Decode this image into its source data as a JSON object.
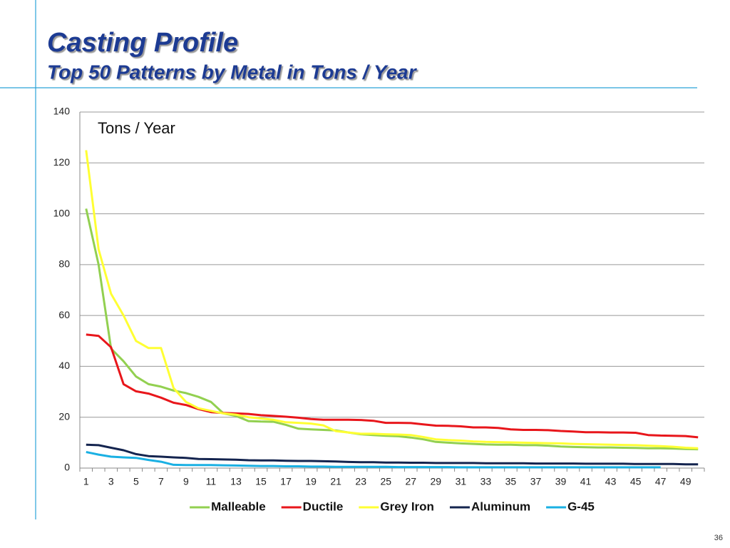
{
  "title": "Casting Profile",
  "subtitle": "Top 50 Patterns by Metal in Tons / Year",
  "page_number": "36",
  "chart_data": {
    "type": "line",
    "annotation": "Tons / Year",
    "categories": [
      "1",
      null,
      "3",
      null,
      "5",
      null,
      "7",
      null,
      "9",
      null,
      "11",
      null,
      "13",
      null,
      "15",
      null,
      "17",
      null,
      "19",
      null,
      "21",
      null,
      "23",
      null,
      "25",
      null,
      "27",
      null,
      "29",
      null,
      "31",
      null,
      "33",
      null,
      "35",
      null,
      "37",
      null,
      "39",
      null,
      "41",
      null,
      "43",
      null,
      "45",
      null,
      "47",
      null,
      "49",
      null
    ],
    "ylim": [
      0,
      140
    ],
    "yticks": [
      0,
      20,
      40,
      60,
      80,
      100,
      120,
      140
    ],
    "grid": true,
    "legend": "bottom",
    "series": [
      {
        "name": "Malleable",
        "color": "#92d050",
        "values": [
          102,
          80,
          47,
          42,
          36,
          33,
          32,
          30.5,
          29.5,
          28,
          26,
          21.5,
          20.5,
          18.5,
          18.3,
          18.2,
          17,
          15.5,
          15.2,
          15,
          14.8,
          14,
          13.3,
          13,
          12.7,
          12.5,
          12,
          11.3,
          10.3,
          10,
          9.7,
          9.5,
          9.3,
          9.2,
          9.2,
          9,
          9,
          8.8,
          8.5,
          8.3,
          8.2,
          8.1,
          8.1,
          8,
          7.9,
          7.8,
          7.8,
          7.7,
          7.5,
          7.4
        ]
      },
      {
        "name": "Ductile",
        "color": "#e8161b",
        "values": [
          52.5,
          52,
          47.5,
          33,
          30.2,
          29.3,
          27.7,
          25.7,
          24.8,
          23.2,
          22,
          21.7,
          21.5,
          21.3,
          20.8,
          20.5,
          20.2,
          19.8,
          19.3,
          19,
          19,
          19,
          18.9,
          18.6,
          17.8,
          17.8,
          17.7,
          17.2,
          16.7,
          16.6,
          16.4,
          16,
          16,
          15.8,
          15.2,
          15,
          15,
          14.9,
          14.6,
          14.4,
          14.1,
          14.1,
          14,
          14,
          13.9,
          13,
          12.8,
          12.7,
          12.6,
          12.1
        ]
      },
      {
        "name": "Grey Iron",
        "color": "#ffff33",
        "values": [
          125,
          86,
          68.5,
          60,
          50,
          47.2,
          47.2,
          31.5,
          26,
          23.5,
          22.5,
          21.5,
          21,
          20,
          19.5,
          19,
          18,
          17.8,
          17.5,
          16.8,
          14.5,
          14,
          13.5,
          13.5,
          13.3,
          13.2,
          13,
          12.2,
          11.3,
          11,
          10.8,
          10.5,
          10.3,
          10.2,
          10.1,
          10,
          9.9,
          9.8,
          9.7,
          9.5,
          9.4,
          9.3,
          9.2,
          9.1,
          9,
          8.8,
          8.6,
          8.4,
          8,
          7.8
        ]
      },
      {
        "name": "Aluminum",
        "color": "#14244f",
        "values": [
          9.2,
          9,
          8,
          7,
          5.5,
          4.7,
          4.5,
          4.2,
          4,
          3.6,
          3.5,
          3.4,
          3.3,
          3.1,
          3,
          3,
          2.9,
          2.8,
          2.8,
          2.7,
          2.6,
          2.4,
          2.3,
          2.3,
          2.2,
          2.2,
          2.1,
          2.1,
          2,
          2,
          2,
          2,
          1.9,
          1.9,
          1.9,
          1.9,
          1.8,
          1.8,
          1.8,
          1.8,
          1.7,
          1.7,
          1.7,
          1.7,
          1.6,
          1.6,
          1.6,
          1.6,
          1.5,
          1.5
        ]
      },
      {
        "name": "G-45",
        "color": "#1ab0e3",
        "values": [
          6.3,
          5.3,
          4.5,
          4.2,
          4,
          3.2,
          2.5,
          1.3,
          1.2,
          1.2,
          1.2,
          1.1,
          1,
          0.9,
          0.8,
          0.8,
          0.7,
          0.7,
          0.6,
          0.6,
          0.5,
          0.5,
          0.5,
          0.5,
          0.5,
          0.4,
          0.4,
          0.4,
          0.4,
          0.4,
          0.3,
          0.3,
          0.3,
          0.3,
          0.3,
          0.3,
          0.3,
          0.3,
          0.3,
          0.3,
          0.3,
          0.3,
          0.3,
          0.3,
          0.3,
          0.3,
          0.3,
          null,
          null,
          null
        ]
      }
    ]
  }
}
